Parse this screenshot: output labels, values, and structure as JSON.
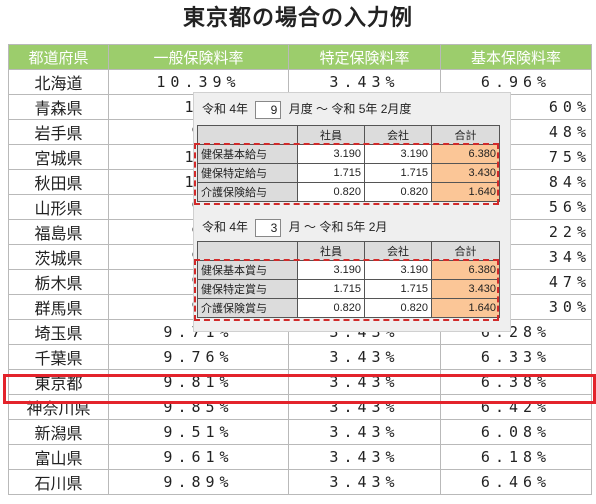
{
  "title": "東京都の場合の入力例",
  "table": {
    "headers": [
      "都道府県",
      "一般保険料率",
      "特定保険料率",
      "基本保険料率"
    ],
    "rows": [
      [
        "北海道",
        "10.39%",
        "3.43%",
        "6.96%"
      ],
      [
        "青森県",
        "10",
        "",
        "60%"
      ],
      [
        "岩手県",
        "9",
        "",
        "48%"
      ],
      [
        "宮城県",
        "10",
        "",
        "75%"
      ],
      [
        "秋田県",
        "10",
        "",
        "84%"
      ],
      [
        "山形県",
        "9",
        "",
        "56%"
      ],
      [
        "福島県",
        "9",
        "",
        "22%"
      ],
      [
        "茨城県",
        "9",
        "",
        "34%"
      ],
      [
        "栃木県",
        "9",
        "",
        "47%"
      ],
      [
        "群馬県",
        "9",
        "",
        "30%"
      ],
      [
        "埼玉県",
        "9.71%",
        "3.43%",
        "6.28%"
      ],
      [
        "千葉県",
        "9.76%",
        "3.43%",
        "6.33%"
      ],
      [
        "東京都",
        "9.81%",
        "3.43%",
        "6.38%"
      ],
      [
        "神奈川県",
        "9.85%",
        "3.43%",
        "6.42%"
      ],
      [
        "新潟県",
        "9.51%",
        "3.43%",
        "6.08%"
      ],
      [
        "富山県",
        "9.61%",
        "3.43%",
        "6.18%"
      ],
      [
        "石川県",
        "9.89%",
        "3.43%",
        "6.46%"
      ]
    ]
  },
  "panel": {
    "block1": {
      "era_start": "令和 4年",
      "month_start": "9",
      "range_text": "月度 ～ 令和 5年 2月度",
      "columns": [
        "",
        "社員",
        "会社",
        "合計"
      ],
      "rows": [
        [
          "健保基本給与",
          "3.190",
          "3.190",
          "6.380"
        ],
        [
          "健保特定給与",
          "1.715",
          "1.715",
          "3.430"
        ],
        [
          "介護保険給与",
          "0.820",
          "0.820",
          "1.640"
        ]
      ]
    },
    "block2": {
      "era_start": "令和 4年",
      "month_start": "3",
      "range_text": "月 ～ 令和 5年 2月",
      "columns": [
        "",
        "社員",
        "会社",
        "合計"
      ],
      "rows": [
        [
          "健保基本賞与",
          "3.190",
          "3.190",
          "6.380"
        ],
        [
          "健保特定賞与",
          "1.715",
          "1.715",
          "3.430"
        ],
        [
          "介護保険賞与",
          "0.820",
          "0.820",
          "1.640"
        ]
      ]
    }
  },
  "colors": {
    "header_bg": "#9ccd6c",
    "highlight": "#e3232b",
    "total_bg": "#fbc697"
  }
}
